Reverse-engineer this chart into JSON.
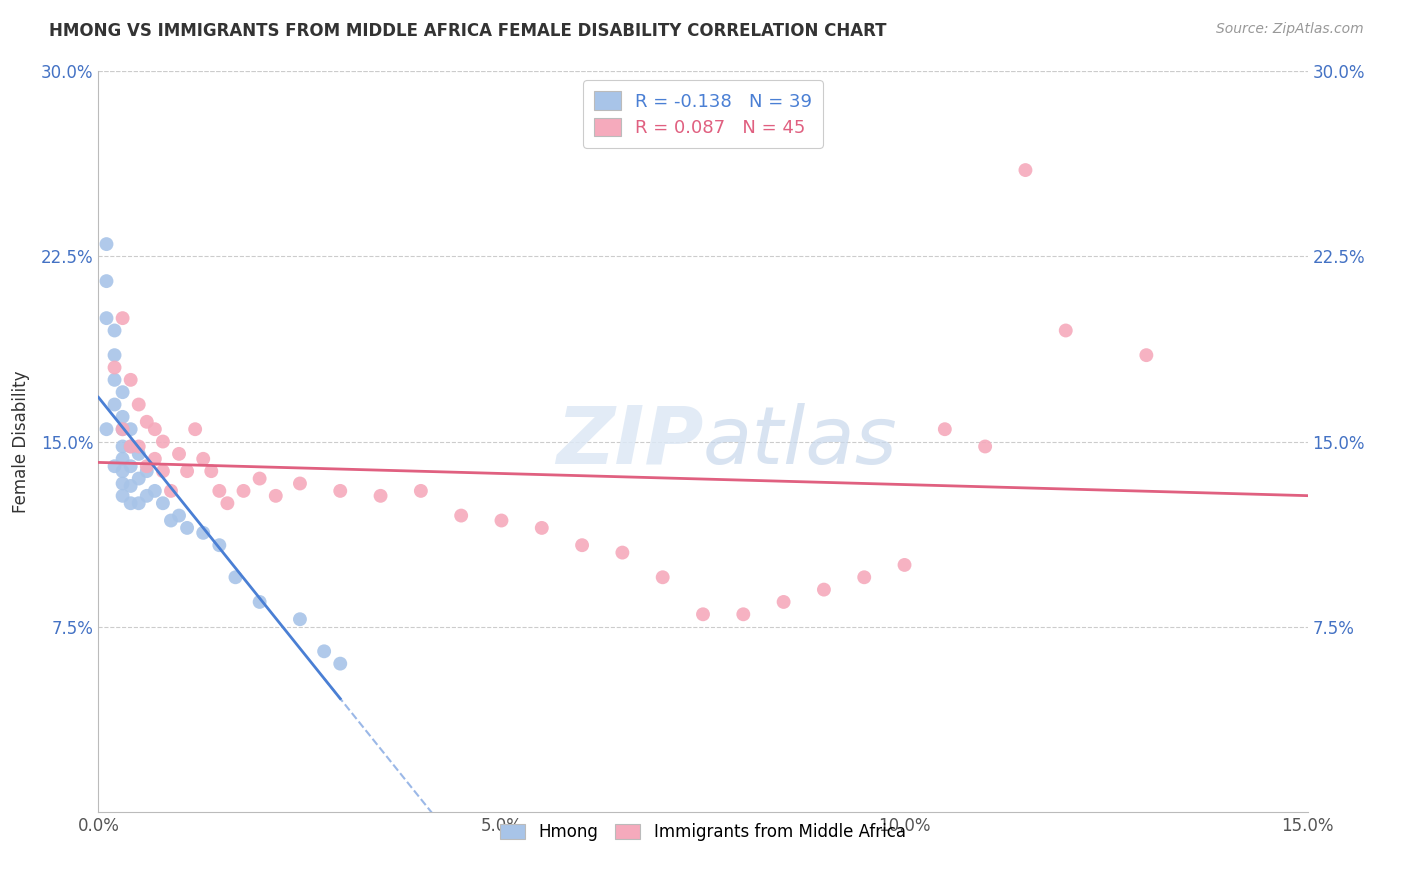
{
  "title": "HMONG VS IMMIGRANTS FROM MIDDLE AFRICA FEMALE DISABILITY CORRELATION CHART",
  "source": "Source: ZipAtlas.com",
  "ylabel": "Female Disability",
  "xlim": [
    0.0,
    0.15
  ],
  "ylim": [
    0.0,
    0.3
  ],
  "yticks": [
    0.0,
    0.075,
    0.15,
    0.225,
    0.3
  ],
  "ytick_labels_left": [
    "",
    "7.5%",
    "15.0%",
    "22.5%",
    "30.0%"
  ],
  "ytick_labels_right": [
    "",
    "7.5%",
    "15.0%",
    "22.5%",
    "30.0%"
  ],
  "xticks": [
    0.0,
    0.05,
    0.1,
    0.15
  ],
  "xtick_labels": [
    "0.0%",
    "5.0%",
    "10.0%",
    "15.0%"
  ],
  "hmong_R": -0.138,
  "hmong_N": 39,
  "africa_R": 0.087,
  "africa_N": 45,
  "hmong_color": "#a8c4e8",
  "africa_color": "#f5aabc",
  "hmong_line_color": "#4a7fd4",
  "africa_line_color": "#e06080",
  "background_color": "#ffffff",
  "grid_color": "#cccccc",
  "watermark_zip": "ZIP",
  "watermark_atlas": "atlas",
  "hmong_x": [
    0.001,
    0.001,
    0.001,
    0.001,
    0.002,
    0.002,
    0.002,
    0.002,
    0.002,
    0.003,
    0.003,
    0.003,
    0.003,
    0.003,
    0.003,
    0.003,
    0.003,
    0.004,
    0.004,
    0.004,
    0.004,
    0.004,
    0.005,
    0.005,
    0.005,
    0.006,
    0.006,
    0.007,
    0.008,
    0.009,
    0.01,
    0.011,
    0.013,
    0.015,
    0.017,
    0.02,
    0.025,
    0.028,
    0.03
  ],
  "hmong_y": [
    0.23,
    0.215,
    0.2,
    0.155,
    0.195,
    0.185,
    0.175,
    0.165,
    0.14,
    0.17,
    0.16,
    0.155,
    0.148,
    0.143,
    0.138,
    0.133,
    0.128,
    0.155,
    0.148,
    0.14,
    0.132,
    0.125,
    0.145,
    0.135,
    0.125,
    0.138,
    0.128,
    0.13,
    0.125,
    0.118,
    0.12,
    0.115,
    0.113,
    0.108,
    0.095,
    0.085,
    0.078,
    0.065,
    0.06
  ],
  "africa_x": [
    0.002,
    0.003,
    0.003,
    0.004,
    0.004,
    0.005,
    0.005,
    0.006,
    0.006,
    0.007,
    0.007,
    0.008,
    0.008,
    0.009,
    0.01,
    0.011,
    0.012,
    0.013,
    0.014,
    0.015,
    0.016,
    0.018,
    0.02,
    0.022,
    0.025,
    0.03,
    0.035,
    0.04,
    0.045,
    0.05,
    0.055,
    0.06,
    0.065,
    0.07,
    0.075,
    0.08,
    0.085,
    0.09,
    0.095,
    0.1,
    0.105,
    0.11,
    0.115,
    0.12,
    0.13
  ],
  "africa_y": [
    0.18,
    0.2,
    0.155,
    0.175,
    0.148,
    0.165,
    0.148,
    0.158,
    0.14,
    0.155,
    0.143,
    0.15,
    0.138,
    0.13,
    0.145,
    0.138,
    0.155,
    0.143,
    0.138,
    0.13,
    0.125,
    0.13,
    0.135,
    0.128,
    0.133,
    0.13,
    0.128,
    0.13,
    0.12,
    0.118,
    0.115,
    0.108,
    0.105,
    0.095,
    0.08,
    0.08,
    0.085,
    0.09,
    0.095,
    0.1,
    0.155,
    0.148,
    0.26,
    0.195,
    0.185
  ]
}
